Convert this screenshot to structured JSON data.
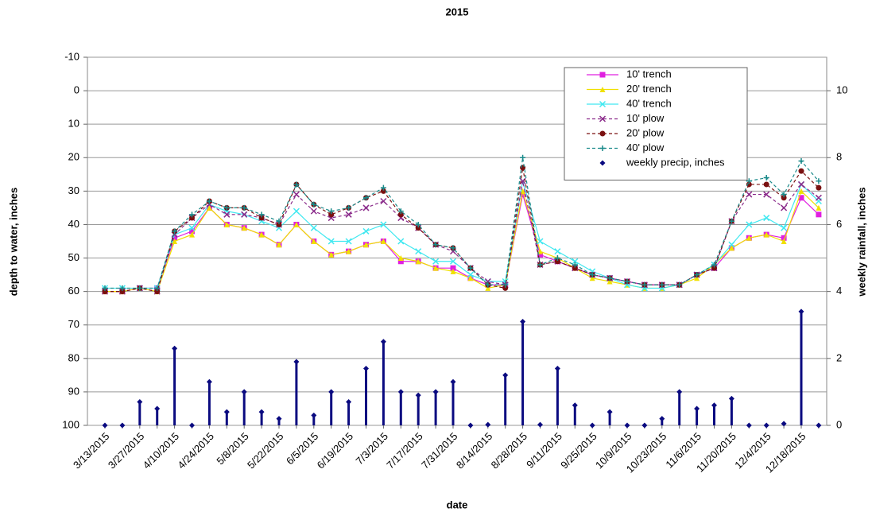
{
  "chart_data": {
    "type": "line",
    "title": "2015",
    "x_label": "date",
    "y_label": "depth to water, inches",
    "y2_label": "weekly rainfall, inches",
    "categories": [
      "3/13/2015",
      null,
      "3/27/2015",
      null,
      "4/10/2015",
      null,
      "4/24/2015",
      null,
      "5/8/2015",
      null,
      "5/22/2015",
      null,
      "6/5/2015",
      null,
      "6/19/2015",
      null,
      "7/3/2015",
      null,
      "7/17/2015",
      null,
      "7/31/2015",
      null,
      "8/14/2015",
      null,
      "8/28/2015",
      null,
      "9/11/2015",
      null,
      "9/25/2015",
      null,
      "10/9/2015",
      null,
      "10/23/2015",
      null,
      "11/6/2015",
      null,
      "11/20/2015",
      null,
      "12/4/2015",
      null,
      "12/18/2015",
      null
    ],
    "ylim": [
      -10,
      100
    ],
    "y_inverted": true,
    "yticks": [
      -10,
      0,
      10,
      20,
      30,
      40,
      50,
      60,
      70,
      80,
      90,
      100
    ],
    "y2lim": [
      0,
      11
    ],
    "y2ticks": [
      0,
      2,
      4,
      6,
      8,
      10
    ],
    "grid": true,
    "legend": "top-right",
    "series": [
      {
        "name": "10' trench",
        "color": "#e020e0",
        "marker": "square",
        "dash": false,
        "values": [
          60,
          60,
          59,
          59,
          44,
          42,
          35,
          40,
          41,
          43,
          46,
          40,
          45,
          49,
          48,
          46,
          45,
          51,
          51,
          53,
          53,
          56,
          58,
          58,
          31,
          49,
          51,
          53,
          55,
          56,
          57,
          58,
          58,
          58,
          55,
          53,
          47,
          44,
          43,
          44,
          32,
          37
        ]
      },
      {
        "name": "20' trench",
        "color": "#f0e000",
        "marker": "triangle",
        "dash": false,
        "values": [
          60,
          60,
          59,
          60,
          45,
          43,
          35,
          40,
          41,
          43,
          46,
          40,
          45,
          49,
          48,
          46,
          45,
          50,
          51,
          53,
          54,
          56,
          59,
          58,
          30,
          48,
          50,
          53,
          56,
          57,
          58,
          59,
          59,
          58,
          56,
          52,
          47,
          44,
          43,
          45,
          30,
          35
        ]
      },
      {
        "name": "40' trench",
        "color": "#40e8f0",
        "marker": "x",
        "dash": false,
        "values": [
          59,
          59,
          59,
          59,
          43,
          41,
          34,
          36,
          37,
          39,
          41,
          36,
          41,
          45,
          45,
          42,
          40,
          45,
          48,
          51,
          51,
          55,
          57,
          57,
          27,
          45,
          48,
          51,
          54,
          56,
          58,
          59,
          59,
          58,
          55,
          52,
          46,
          40,
          38,
          41,
          28,
          33
        ]
      },
      {
        "name": "10' plow",
        "color": "#8a2a8a",
        "marker": "x",
        "dash": true,
        "values": [
          60,
          60,
          59,
          60,
          43,
          38,
          34,
          37,
          37,
          38,
          40,
          31,
          36,
          38,
          37,
          35,
          33,
          38,
          41,
          46,
          48,
          53,
          57,
          58,
          27,
          52,
          51,
          53,
          55,
          56,
          57,
          58,
          58,
          58,
          55,
          53,
          39,
          31,
          31,
          35,
          28,
          32
        ]
      },
      {
        "name": "20' plow",
        "color": "#7a1010",
        "marker": "circle",
        "dash": true,
        "values": [
          60,
          60,
          59,
          60,
          42,
          38,
          33,
          35,
          35,
          38,
          40,
          28,
          34,
          37,
          35,
          32,
          30,
          37,
          41,
          46,
          47,
          53,
          58,
          59,
          23,
          52,
          51,
          53,
          55,
          56,
          57,
          58,
          58,
          58,
          55,
          53,
          39,
          28,
          28,
          32,
          24,
          29
        ]
      },
      {
        "name": "40' plow",
        "color": "#1a8a8a",
        "marker": "plus",
        "dash": true,
        "values": [
          59,
          59,
          59,
          59,
          42,
          37,
          33,
          35,
          35,
          37,
          39,
          28,
          34,
          36,
          35,
          32,
          29,
          36,
          40,
          46,
          47,
          53,
          58,
          58,
          20,
          52,
          50,
          52,
          55,
          56,
          57,
          58,
          58,
          58,
          55,
          52,
          39,
          27,
          26,
          31,
          21,
          27
        ]
      },
      {
        "name": "weekly precip, inches",
        "color": "#0a0a80",
        "marker": "diamond",
        "type": "stem",
        "axis": "y2",
        "values": [
          0,
          0,
          0.7,
          0.5,
          2.3,
          0,
          1.3,
          0.4,
          1.0,
          0.4,
          0.2,
          1.9,
          0.3,
          1.0,
          0.7,
          1.7,
          2.5,
          1.0,
          0.9,
          1.0,
          1.3,
          0,
          0.02,
          1.5,
          3.1,
          0.02,
          1.7,
          0.6,
          0,
          0.4,
          0,
          0,
          0.2,
          1.0,
          0.5,
          0.6,
          0.8,
          0,
          0,
          0.05,
          3.4,
          0
        ]
      }
    ]
  }
}
